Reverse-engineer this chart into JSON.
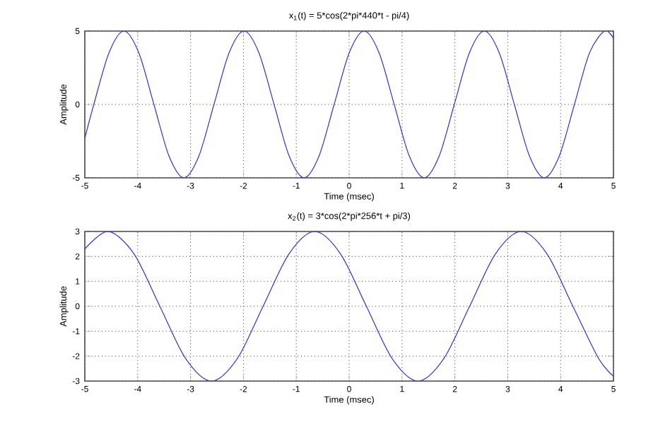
{
  "chart_data": [
    {
      "type": "line",
      "title": "x$_{1}$(t) = 5*cos(2*pi*440*t - pi/4)",
      "xlabel": "Time (msec)",
      "ylabel": "Amplitude",
      "xlim": [
        -5,
        5
      ],
      "ylim": [
        -5,
        5
      ],
      "xticks": [
        -5,
        -4,
        -3,
        -2,
        -1,
        0,
        1,
        2,
        3,
        4,
        5
      ],
      "yticks": [
        -5,
        0,
        5
      ],
      "grid": true,
      "series": [
        {
          "color": "#3333cc",
          "x": [
            -5,
            -4.83,
            -4.545,
            -4.261,
            -3.977,
            -3.693,
            -3.409,
            -3.125,
            -2.841,
            -2.557,
            -2.273,
            -1.989,
            -1.705,
            -1.42,
            -1.136,
            -0.852,
            -0.568,
            -0.284,
            0,
            0.284,
            0.568,
            0.852,
            1.136,
            1.42,
            1.705,
            1.989,
            2.273,
            2.557,
            2.841,
            3.125,
            3.409,
            3.693,
            3.977,
            4.261,
            4.545,
            4.83,
            5
          ],
          "values": [
            -2.3,
            0,
            3.5,
            5,
            3.5,
            0,
            -3.5,
            -5,
            -3.5,
            0,
            3.5,
            5,
            3.5,
            0,
            -3.5,
            -5,
            -3.5,
            0,
            3.5,
            5,
            3.5,
            0,
            -3.5,
            -5,
            -3.5,
            0,
            3.5,
            5,
            3.5,
            0,
            -3.5,
            -5,
            -3.5,
            0,
            3.5,
            5,
            4.5
          ]
        }
      ]
    },
    {
      "type": "line",
      "title": "x$_{2}$(t) = 3*cos(2*pi*256*t + pi/3)",
      "xlabel": "Time (msec)",
      "ylabel": "Amplitude",
      "xlim": [
        -5,
        5
      ],
      "ylim": [
        -3,
        3
      ],
      "xticks": [
        -5,
        -4,
        -3,
        -2,
        -1,
        0,
        1,
        2,
        3,
        4,
        5
      ],
      "yticks": [
        -3,
        -2,
        -1,
        0,
        1,
        2,
        3
      ],
      "grid": true,
      "series": [
        {
          "color": "#3333cc",
          "x": [
            -5,
            -4.557,
            -4.069,
            -3.581,
            -3.092,
            -2.604,
            -2.116,
            -1.628,
            -1.139,
            -0.651,
            -0.163,
            0.326,
            0.814,
            1.302,
            1.79,
            2.279,
            2.767,
            3.255,
            3.743,
            4.232,
            4.72,
            5
          ],
          "values": [
            2.3,
            3,
            2.1,
            0,
            -2.1,
            -3,
            -2.1,
            0,
            2.1,
            3,
            2.1,
            0,
            -2.1,
            -3,
            -2.1,
            0,
            2.1,
            3,
            2.1,
            0,
            -2.1,
            -2.8
          ]
        }
      ]
    }
  ]
}
